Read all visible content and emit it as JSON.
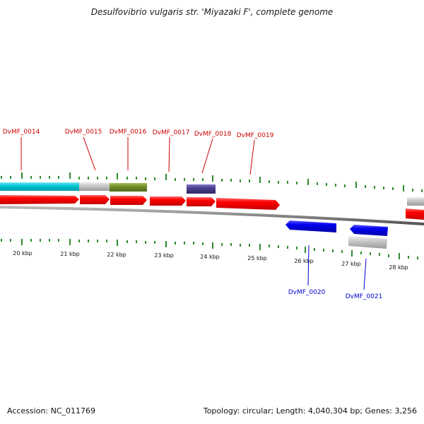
{
  "title": "Desulfovibrio vulgaris str. 'Miyazaki F', complete genome",
  "footer": {
    "accession": "Accession: NC_011769",
    "summary": "Topology: circular; Length: 4,040,304 bp; Genes: 3,256"
  },
  "colors": {
    "forward_cds": "#ff0000",
    "reverse_cds": "#0000ee",
    "gene_cyan": "#00c8d6",
    "gene_gray": "#c8c8c8",
    "gene_olive": "#6f8f2a",
    "gene_purple": "#4a3f8f",
    "ticks": "#2e8b2e",
    "label_forward": "#cc0000",
    "label_reverse": "#0000cc"
  },
  "kbp_labels": [
    "20 kbp",
    "21 kbp",
    "22 kbp",
    "23 kbp",
    "24 kbp",
    "25 kbp",
    "26 kbp",
    "27 kbp",
    "28 kbp"
  ],
  "forward_labels": [
    "DvMF_0014",
    "DvMF_0015",
    "DvMF_0016",
    "DvMF_0017",
    "DvMF_0018",
    "DvMF_0019"
  ],
  "reverse_labels": [
    "DvMF_0020",
    "DvMF_0021"
  ]
}
